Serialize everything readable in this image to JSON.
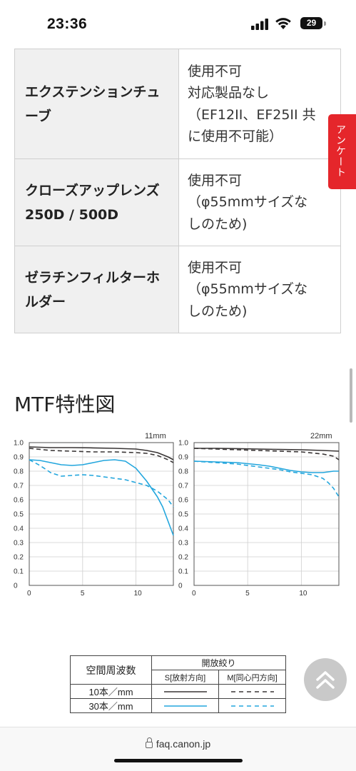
{
  "status": {
    "time": "23:36",
    "battery": "29"
  },
  "compat_table": [
    {
      "accessory": "エクステンションチューブ",
      "value": "使用不可\n対応製品なし\n（EF12II、EF25II 共に使用不可能）"
    },
    {
      "accessory": "クローズアップレンズ 250D / 500D",
      "value": "使用不可\n（φ55mmサイズなしのため)"
    },
    {
      "accessory": "ゼラチンフィルターホルダー",
      "value": "使用不可\n（φ55mmサイズなしのため)"
    }
  ],
  "side_tab": {
    "label": "アンケート"
  },
  "section": {
    "title": "MTF特性図"
  },
  "chart_data": [
    {
      "type": "line",
      "title": "11mm",
      "xlim": [
        0,
        13.5
      ],
      "ylim": [
        0,
        1.0
      ],
      "xticks": [
        "0",
        "5",
        "10"
      ],
      "yticks": [
        "0",
        "0.1",
        "0.2",
        "0.3",
        "0.4",
        "0.5",
        "0.6",
        "0.7",
        "0.8",
        "0.9",
        "1.0"
      ],
      "grid": true,
      "series": [
        {
          "x": [
            0,
            2,
            4,
            6,
            8,
            10,
            11,
            12,
            13,
            13.5
          ],
          "y": [
            0.97,
            0.965,
            0.965,
            0.963,
            0.96,
            0.955,
            0.945,
            0.93,
            0.9,
            0.88
          ],
          "color": "#3a3636",
          "dash": false
        },
        {
          "x": [
            0,
            2,
            4,
            6,
            8,
            10,
            11,
            12,
            13,
            13.5
          ],
          "y": [
            0.96,
            0.945,
            0.94,
            0.935,
            0.935,
            0.93,
            0.925,
            0.91,
            0.88,
            0.86
          ],
          "color": "#3a3636",
          "dash": true
        },
        {
          "x": [
            0,
            1,
            2,
            3,
            4,
            5,
            6,
            7,
            8,
            9,
            10,
            11,
            12,
            12.5,
            13,
            13.5
          ],
          "y": [
            0.88,
            0.875,
            0.86,
            0.845,
            0.84,
            0.845,
            0.86,
            0.875,
            0.88,
            0.87,
            0.82,
            0.73,
            0.62,
            0.55,
            0.45,
            0.35
          ],
          "color": "#23a6dd",
          "dash": false
        },
        {
          "x": [
            0,
            1,
            2,
            3,
            4,
            5,
            6,
            7,
            8,
            9,
            10,
            11,
            12,
            13,
            13.5
          ],
          "y": [
            0.88,
            0.84,
            0.79,
            0.765,
            0.77,
            0.775,
            0.77,
            0.76,
            0.75,
            0.74,
            0.72,
            0.7,
            0.66,
            0.6,
            0.55
          ],
          "color": "#23a6dd",
          "dash": true
        }
      ]
    },
    {
      "type": "line",
      "title": "22mm",
      "xlim": [
        0,
        13.5
      ],
      "ylim": [
        0,
        1.0
      ],
      "xticks": [
        "0",
        "5",
        "10"
      ],
      "yticks": [
        "0",
        "0.1",
        "0.2",
        "0.3",
        "0.4",
        "0.5",
        "0.6",
        "0.7",
        "0.8",
        "0.9",
        "1.0"
      ],
      "grid": true,
      "series": [
        {
          "x": [
            0,
            2,
            4,
            6,
            8,
            10,
            12,
            13.5
          ],
          "y": [
            0.96,
            0.96,
            0.958,
            0.955,
            0.952,
            0.95,
            0.945,
            0.94
          ],
          "color": "#3a3636",
          "dash": false
        },
        {
          "x": [
            0,
            2,
            4,
            6,
            8,
            10,
            12,
            13,
            13.5
          ],
          "y": [
            0.96,
            0.955,
            0.95,
            0.945,
            0.94,
            0.935,
            0.92,
            0.905,
            0.88
          ],
          "color": "#3a3636",
          "dash": true
        },
        {
          "x": [
            0,
            2,
            4,
            6,
            7,
            8,
            9,
            10,
            11,
            12,
            13,
            13.5
          ],
          "y": [
            0.87,
            0.865,
            0.86,
            0.845,
            0.835,
            0.82,
            0.805,
            0.795,
            0.79,
            0.79,
            0.8,
            0.8
          ],
          "color": "#23a6dd",
          "dash": false
        },
        {
          "x": [
            0,
            2,
            4,
            6,
            7,
            8,
            9,
            10,
            11,
            12,
            12.5,
            13,
            13.5
          ],
          "y": [
            0.87,
            0.86,
            0.85,
            0.83,
            0.82,
            0.81,
            0.795,
            0.785,
            0.775,
            0.75,
            0.72,
            0.68,
            0.62
          ],
          "color": "#23a6dd",
          "dash": true
        }
      ]
    }
  ],
  "legend": {
    "spatial_freq_header": "空間周波数",
    "aperture_header": "開放絞り",
    "s_header": "S[放射方向]",
    "m_header": "M[同心円方向]",
    "row1_label": "10本／mm",
    "row2_label": "30本／mm",
    "dark_color": "#3a3636",
    "blue_color": "#23a6dd"
  },
  "address": {
    "url": "faq.canon.jp"
  }
}
